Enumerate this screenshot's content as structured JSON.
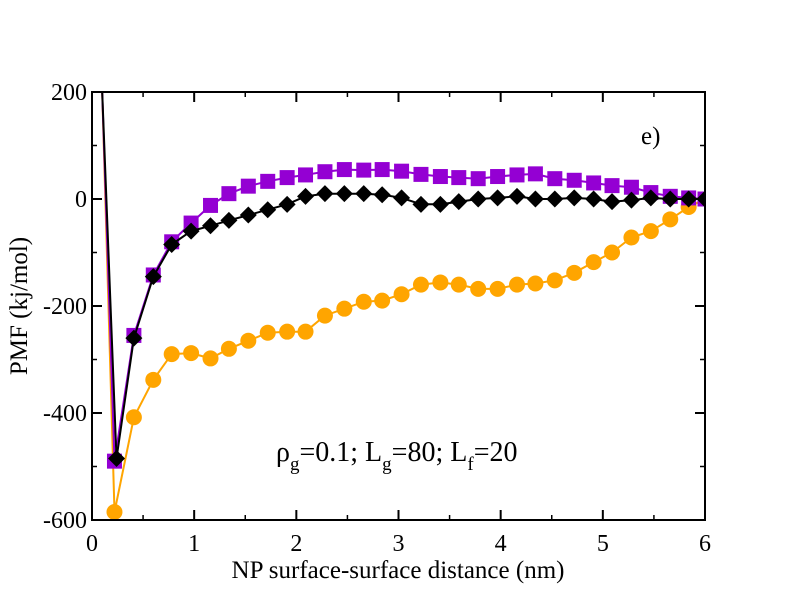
{
  "chart_data": {
    "type": "line",
    "title": "",
    "xlabel": "NP surface-surface distance (nm)",
    "ylabel": "PMF (kj/mol)",
    "xlim": [
      0,
      6
    ],
    "ylim": [
      -600,
      200
    ],
    "xticks": [
      0,
      1,
      2,
      3,
      4,
      5,
      6
    ],
    "yticks": [
      -600,
      -400,
      -200,
      0,
      200
    ],
    "grid": false,
    "panel_label": "e)",
    "annotation": {
      "rho": "ρ",
      "rho_sub": "g",
      "rho_val": "=0.1; L",
      "lg_sub": "g",
      "lg_val": "=80; L",
      "lf_sub": "f",
      "lf_val": "=20"
    },
    "series": [
      {
        "name": "orange",
        "color": "#ffa500",
        "marker": "circle",
        "x": [
          0.1,
          0.22,
          0.41,
          0.6,
          0.78,
          0.97,
          1.16,
          1.34,
          1.53,
          1.72,
          1.91,
          2.09,
          2.28,
          2.47,
          2.66,
          2.84,
          3.03,
          3.22,
          3.41,
          3.59,
          3.78,
          3.97,
          4.16,
          4.34,
          4.53,
          4.72,
          4.91,
          5.09,
          5.28,
          5.47,
          5.66,
          5.84,
          6.0
        ],
        "y": [
          200,
          -585,
          -408,
          -338,
          -290,
          -288,
          -298,
          -280,
          -265,
          -250,
          -248,
          -248,
          -218,
          -205,
          -192,
          -190,
          -178,
          -160,
          -156,
          -160,
          -168,
          -168,
          -160,
          -158,
          -152,
          -138,
          -118,
          -100,
          -72,
          -60,
          -38,
          -15,
          0
        ],
        "marker_x": [
          0.22,
          0.41,
          0.6,
          0.78,
          0.97,
          1.16,
          1.34,
          1.53,
          1.72,
          1.91,
          2.09,
          2.28,
          2.47,
          2.66,
          2.84,
          3.03,
          3.22,
          3.41,
          3.59,
          3.78,
          3.97,
          4.16,
          4.34,
          4.53,
          4.72,
          4.91,
          5.09,
          5.28,
          5.47,
          5.66,
          5.84
        ],
        "marker_y": [
          -585,
          -408,
          -338,
          -290,
          -288,
          -298,
          -280,
          -265,
          -250,
          -248,
          -248,
          -218,
          -205,
          -192,
          -190,
          -178,
          -160,
          -156,
          -160,
          -168,
          -168,
          -160,
          -158,
          -152,
          -138,
          -118,
          -100,
          -72,
          -60,
          -38,
          -15
        ]
      },
      {
        "name": "purple",
        "color": "#9400d3",
        "marker": "square",
        "x": [
          0.1,
          0.22,
          0.41,
          0.6,
          0.78,
          0.97,
          1.16,
          1.34,
          1.53,
          1.72,
          1.91,
          2.09,
          2.28,
          2.47,
          2.66,
          2.84,
          3.03,
          3.22,
          3.41,
          3.59,
          3.78,
          3.97,
          4.16,
          4.34,
          4.53,
          4.72,
          4.91,
          5.09,
          5.28,
          5.47,
          5.66,
          5.84,
          6.0
        ],
        "y": [
          200,
          -490,
          -255,
          -142,
          -80,
          -45,
          -12,
          10,
          24,
          33,
          40,
          45,
          51,
          55,
          54,
          55,
          52,
          46,
          42,
          40,
          38,
          42,
          45,
          47,
          38,
          35,
          30,
          25,
          22,
          12,
          5,
          2,
          0
        ],
        "marker_x": [
          0.22,
          0.41,
          0.6,
          0.78,
          0.97,
          1.16,
          1.34,
          1.53,
          1.72,
          1.91,
          2.09,
          2.28,
          2.47,
          2.66,
          2.84,
          3.03,
          3.22,
          3.41,
          3.59,
          3.78,
          3.97,
          4.16,
          4.34,
          4.53,
          4.72,
          4.91,
          5.09,
          5.28,
          5.47,
          5.66,
          5.84,
          6.0
        ],
        "marker_y": [
          -490,
          -255,
          -142,
          -80,
          -45,
          -12,
          10,
          24,
          33,
          40,
          45,
          51,
          55,
          54,
          55,
          52,
          46,
          42,
          40,
          38,
          42,
          45,
          47,
          38,
          35,
          30,
          25,
          22,
          12,
          5,
          2,
          0
        ]
      },
      {
        "name": "black",
        "color": "#000000",
        "marker": "diamond",
        "x": [
          0.1,
          0.24,
          0.41,
          0.6,
          0.78,
          0.97,
          1.16,
          1.34,
          1.53,
          1.72,
          1.91,
          2.09,
          2.28,
          2.47,
          2.66,
          2.84,
          3.03,
          3.22,
          3.41,
          3.59,
          3.78,
          3.97,
          4.16,
          4.34,
          4.53,
          4.72,
          4.91,
          5.09,
          5.28,
          5.47,
          5.66,
          5.84,
          6.0
        ],
        "y": [
          200,
          -485,
          -260,
          -145,
          -85,
          -60,
          -50,
          -40,
          -30,
          -20,
          -10,
          5,
          10,
          10,
          10,
          8,
          2,
          -10,
          -10,
          -5,
          0,
          2,
          5,
          0,
          0,
          2,
          0,
          -5,
          -2,
          2,
          0,
          0,
          0
        ],
        "marker_x": [
          0.24,
          0.41,
          0.6,
          0.78,
          0.97,
          1.16,
          1.34,
          1.53,
          1.72,
          1.91,
          2.09,
          2.28,
          2.47,
          2.66,
          2.84,
          3.03,
          3.22,
          3.41,
          3.59,
          3.78,
          3.97,
          4.16,
          4.34,
          4.53,
          4.72,
          4.91,
          5.09,
          5.28,
          5.47,
          5.66,
          5.84,
          6.0
        ],
        "marker_y": [
          -485,
          -260,
          -145,
          -85,
          -60,
          -50,
          -40,
          -30,
          -20,
          -10,
          5,
          10,
          10,
          10,
          8,
          2,
          -10,
          -10,
          -5,
          0,
          2,
          5,
          0,
          0,
          2,
          0,
          -5,
          -2,
          2,
          0,
          0,
          0
        ]
      }
    ]
  }
}
